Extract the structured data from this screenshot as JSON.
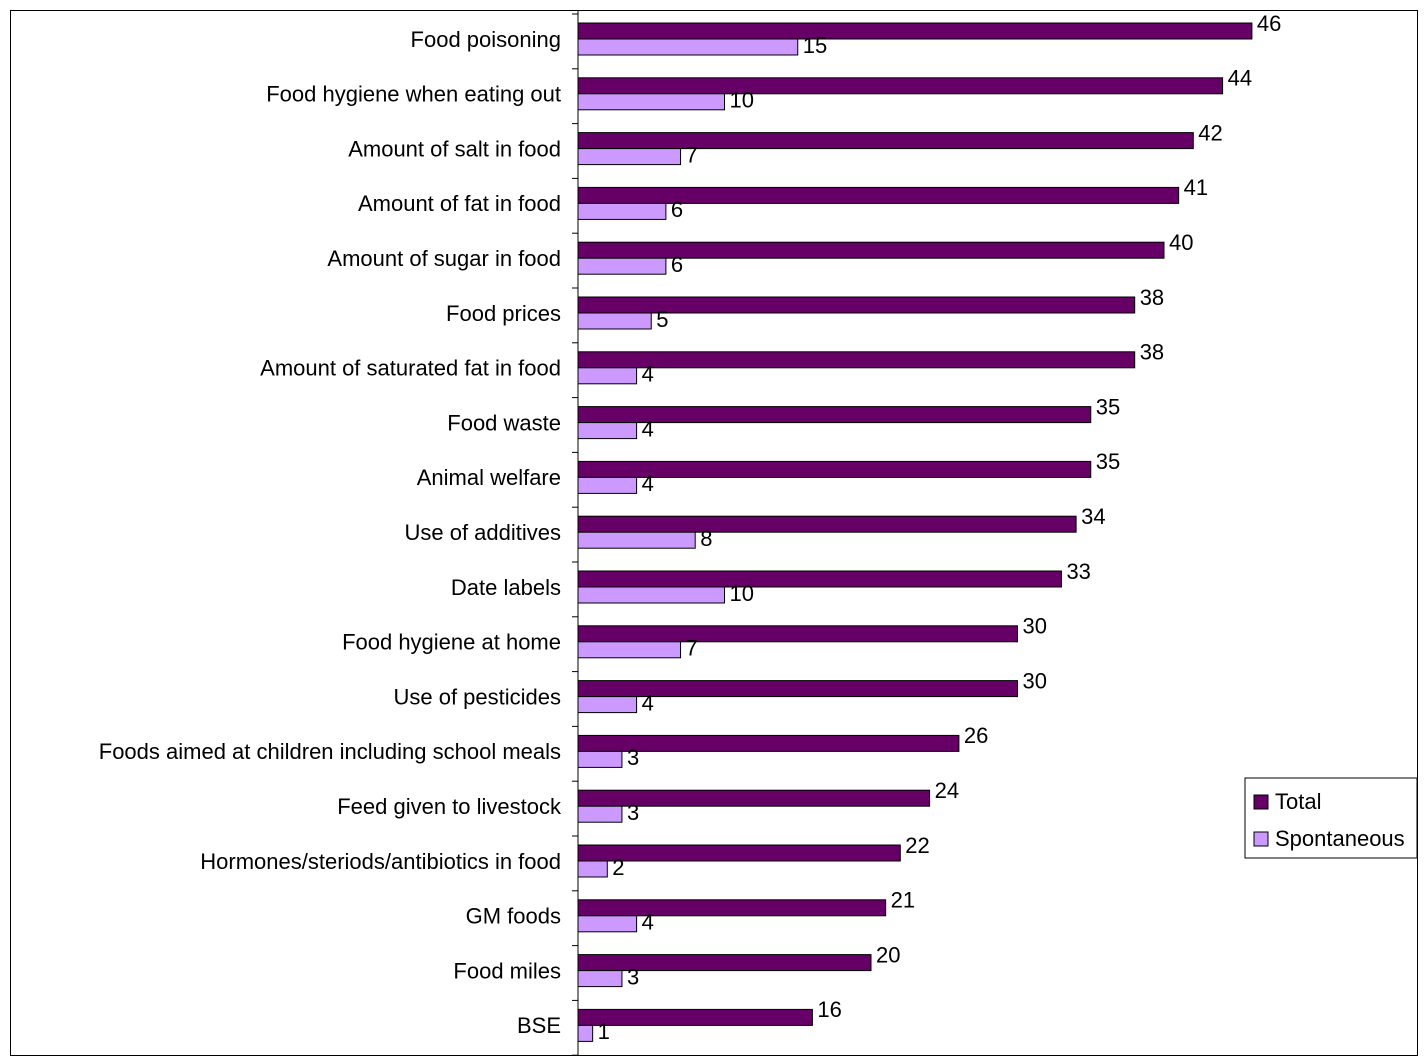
{
  "chart_data": {
    "type": "bar",
    "orientation": "horizontal",
    "categories": [
      "Food poisoning",
      "Food hygiene when eating out",
      "Amount of salt in food",
      "Amount of fat in food",
      "Amount of sugar in food",
      "Food prices",
      "Amount of saturated fat in food",
      "Food waste",
      "Animal welfare",
      "Use of additives",
      "Date labels ",
      "Food hygiene at home",
      "Use of pesticides",
      "Foods aimed at children including school meals",
      "Feed given to livestock",
      "Hormones/steriods/antibiotics in food",
      "GM foods",
      "Food miles",
      "BSE"
    ],
    "series": [
      {
        "name": "Total",
        "color": "#660066",
        "values": [
          46,
          44,
          42,
          41,
          40,
          38,
          38,
          35,
          35,
          34,
          33,
          30,
          30,
          26,
          24,
          22,
          21,
          20,
          16
        ]
      },
      {
        "name": "Spontaneous",
        "color": "#cc99ff",
        "values": [
          15,
          10,
          7,
          6,
          6,
          5,
          4,
          4,
          4,
          8,
          10,
          7,
          4,
          3,
          3,
          2,
          4,
          3,
          1
        ]
      }
    ],
    "xlim": [
      0,
      46
    ],
    "data_labels": true,
    "grid": false,
    "legend_position": "right"
  }
}
